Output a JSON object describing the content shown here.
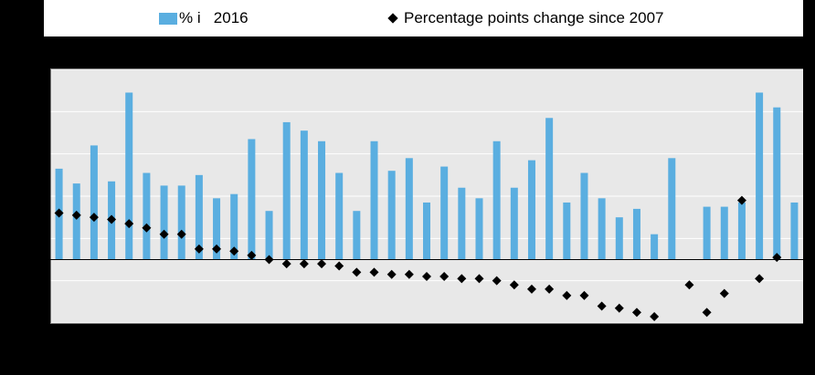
{
  "legend": {
    "bar_label": "% i   2016",
    "dot_label": "Percentage points change since 2007"
  },
  "colors": {
    "bar": "#5aaee0",
    "marker": "#000000",
    "plot_bg": "#e8e8e8",
    "grid": "#ffffff"
  },
  "chart_data": {
    "type": "bar",
    "title": "",
    "xlabel": "",
    "ylabel": "",
    "ylim": [
      -15,
      45
    ],
    "grid": true,
    "legend_position": "top",
    "categories": [
      "",
      "",
      "",
      "",
      "",
      "",
      "",
      "",
      "",
      "",
      "",
      "",
      "",
      "",
      "",
      "",
      "",
      "",
      "",
      "",
      "",
      "",
      "",
      "",
      "",
      "",
      "",
      "",
      "",
      "",
      "",
      "",
      "",
      "",
      "",
      "",
      "",
      "",
      "",
      "",
      "",
      "",
      ""
    ],
    "series": [
      {
        "name": "% i   2016",
        "type": "bar",
        "values": [
          21.5,
          18,
          27,
          18.5,
          39.5,
          20.5,
          17.5,
          17.5,
          20,
          14.5,
          15.5,
          28.5,
          11.5,
          32.5,
          30.5,
          28,
          20.5,
          11.5,
          28,
          21,
          24,
          13.5,
          22,
          17,
          14.5,
          28,
          17,
          23.5,
          33.5,
          13.5,
          20.5,
          14.5,
          10,
          12,
          6,
          24,
          null,
          12.5,
          12.5,
          13.5,
          39.5,
          36,
          13.5
        ]
      },
      {
        "name": "Percentage points change since 2007",
        "type": "scatter",
        "values": [
          11,
          10.5,
          10,
          9.5,
          8.5,
          7.5,
          6,
          6,
          2.5,
          2.5,
          2,
          1,
          0,
          -1,
          -1,
          -1,
          -1.5,
          -3,
          -3,
          -3.5,
          -3.5,
          -4,
          -4,
          -4.5,
          -4.5,
          -5,
          -6,
          -7,
          -7,
          -8.5,
          -8.5,
          -11,
          -11.5,
          -12.5,
          -13.5,
          null,
          -6,
          -12.5,
          -8,
          14,
          -4.5,
          0.5,
          null
        ]
      }
    ]
  }
}
